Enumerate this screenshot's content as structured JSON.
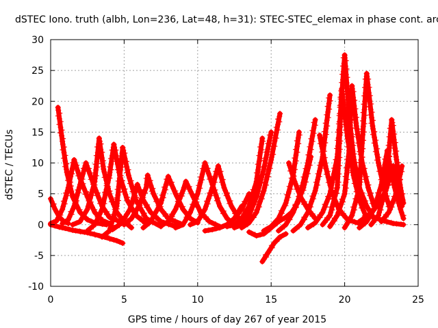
{
  "chart_data": {
    "type": "scatter",
    "title": "dSTEC Iono. truth (albh, Lon=236, Lat=48, h=31): STEC-STEC_elemax in phase cont. arc",
    "xlabel": "GPS time / hours of day 267 of year 2015",
    "ylabel": "dSTEC  / TECUs",
    "xlim": [
      0,
      25
    ],
    "ylim": [
      -10,
      30
    ],
    "xticks": [
      0,
      5,
      10,
      15,
      20,
      25
    ],
    "yticks": [
      -10,
      -5,
      0,
      5,
      10,
      15,
      20,
      25,
      30
    ],
    "grid": true,
    "marker": "+",
    "color": "#ff0000",
    "series": [
      {
        "x": [
          0.0,
          0.3,
          0.6,
          1.0,
          1.5,
          2.5,
          3.5,
          4.5,
          4.9
        ],
        "y": [
          0.0,
          -0.2,
          -0.4,
          -0.6,
          -0.9,
          -1.3,
          -1.9,
          -2.6,
          -3.0
        ]
      },
      {
        "x": [
          0.0,
          0.3,
          0.6,
          0.9,
          1.2
        ],
        "y": [
          4.2,
          2.5,
          1.2,
          0.5,
          0.2
        ]
      },
      {
        "x": [
          0.5,
          0.8,
          1.1,
          1.5,
          2.0,
          2.5,
          3.0,
          3.8
        ],
        "y": [
          19.0,
          13.5,
          8.5,
          4.5,
          2.0,
          0.8,
          0.3,
          0.0
        ]
      },
      {
        "x": [
          0.0,
          0.4,
          0.8,
          1.2,
          1.6
        ],
        "y": [
          0.2,
          0.6,
          2.5,
          6.0,
          10.5
        ]
      },
      {
        "x": [
          1.6,
          2.0,
          2.5,
          3.0,
          3.5,
          4.0
        ],
        "y": [
          10.5,
          7.5,
          4.5,
          2.0,
          0.7,
          0.2
        ]
      },
      {
        "x": [
          0.8,
          1.2,
          1.6,
          2.0,
          2.4
        ],
        "y": [
          0.2,
          0.8,
          3.0,
          6.5,
          10.0
        ]
      },
      {
        "x": [
          2.4,
          3.0,
          3.5,
          4.0,
          4.8
        ],
        "y": [
          10.0,
          6.0,
          3.0,
          1.2,
          0.4
        ]
      },
      {
        "x": [
          1.5,
          2.0,
          2.5,
          3.0,
          3.3
        ],
        "y": [
          0.0,
          0.5,
          2.5,
          7.0,
          14.0
        ]
      },
      {
        "x": [
          3.3,
          3.6,
          4.0,
          4.5,
          5.0,
          5.5
        ],
        "y": [
          14.0,
          9.0,
          5.0,
          2.0,
          0.5,
          -0.5
        ]
      },
      {
        "x": [
          2.5,
          3.0,
          3.5,
          4.0,
          4.3
        ],
        "y": [
          -1.0,
          0.0,
          2.5,
          8.0,
          13.0
        ]
      },
      {
        "x": [
          4.3,
          4.7,
          5.2,
          5.8,
          6.5
        ],
        "y": [
          13.0,
          8.0,
          4.0,
          1.5,
          0.2
        ]
      },
      {
        "x": [
          3.5,
          4.0,
          4.5,
          4.9
        ],
        "y": [
          -2.0,
          -1.0,
          3.0,
          12.5
        ]
      },
      {
        "x": [
          4.9,
          5.3,
          5.8,
          6.5,
          7.5
        ],
        "y": [
          12.5,
          8.0,
          4.0,
          1.0,
          -0.3
        ]
      },
      {
        "x": [
          4.2,
          4.8,
          5.4,
          5.9
        ],
        "y": [
          -0.8,
          0.2,
          2.5,
          6.5
        ]
      },
      {
        "x": [
          5.9,
          6.3,
          6.8,
          7.5,
          8.5
        ],
        "y": [
          6.5,
          4.0,
          2.0,
          0.5,
          -0.3
        ]
      },
      {
        "x": [
          5.0,
          5.5,
          6.0,
          6.5,
          6.6
        ],
        "y": [
          0.0,
          1.0,
          3.0,
          6.0,
          8.0
        ]
      },
      {
        "x": [
          6.6,
          7.0,
          7.5,
          8.0,
          9.0
        ],
        "y": [
          8.0,
          5.0,
          2.5,
          1.0,
          0.0
        ]
      },
      {
        "x": [
          6.3,
          6.8,
          7.5,
          8.0
        ],
        "y": [
          -0.5,
          0.5,
          3.5,
          7.8
        ]
      },
      {
        "x": [
          8.0,
          8.5,
          9.0,
          9.5,
          10.0
        ],
        "y": [
          7.8,
          5.0,
          2.5,
          1.0,
          0.3
        ]
      },
      {
        "x": [
          7.5,
          8.0,
          8.5,
          9.0,
          9.2
        ],
        "y": [
          -0.2,
          0.5,
          2.5,
          5.5,
          7.0
        ]
      },
      {
        "x": [
          9.2,
          9.7,
          10.2,
          10.8,
          11.5
        ],
        "y": [
          7.0,
          4.5,
          2.0,
          0.5,
          -0.3
        ]
      },
      {
        "x": [
          8.5,
          9.0,
          9.5,
          10.0,
          10.5
        ],
        "y": [
          -0.5,
          0.0,
          2.0,
          5.0,
          10.0
        ]
      },
      {
        "x": [
          10.5,
          11.0,
          11.5,
          12.0,
          12.5
        ],
        "y": [
          10.0,
          6.5,
          3.0,
          1.0,
          0.0
        ]
      },
      {
        "x": [
          9.5,
          10.0,
          10.5,
          11.0,
          11.4
        ],
        "y": [
          0.0,
          0.5,
          2.5,
          6.0,
          9.5
        ]
      },
      {
        "x": [
          11.4,
          11.8,
          12.3,
          12.8,
          13.3
        ],
        "y": [
          9.5,
          6.0,
          3.0,
          1.0,
          0.2
        ]
      },
      {
        "x": [
          10.5,
          11.0,
          11.5,
          12.0,
          12.5,
          13.0
        ],
        "y": [
          -1.0,
          -0.8,
          -0.5,
          0.0,
          1.0,
          3.0
        ]
      },
      {
        "x": [
          11.5,
          12.0,
          12.5,
          13.0,
          13.5
        ],
        "y": [
          -0.5,
          0.0,
          1.0,
          2.5,
          5.0
        ]
      },
      {
        "x": [
          12.0,
          12.5,
          13.0,
          13.5,
          14.0,
          14.4
        ],
        "y": [
          -0.3,
          0.0,
          1.0,
          3.0,
          7.0,
          14.0
        ]
      },
      {
        "x": [
          12.5,
          13.0,
          13.5,
          14.0,
          14.5,
          15.0
        ],
        "y": [
          -0.5,
          0.0,
          1.5,
          4.5,
          9.0,
          15.0
        ]
      },
      {
        "x": [
          13.0,
          13.5,
          14.0,
          14.5,
          15.0,
          15.6
        ],
        "y": [
          -0.5,
          0.3,
          2.0,
          5.5,
          10.5,
          18.0
        ]
      },
      {
        "x": [
          14.4,
          14.8,
          15.2,
          15.6,
          16.0
        ],
        "y": [
          -6.0,
          -4.5,
          -3.0,
          -2.0,
          -1.5
        ]
      },
      {
        "x": [
          13.5,
          14.0,
          14.5,
          15.0,
          15.5,
          16.0,
          16.4,
          16.8,
          17.2,
          17.7
        ],
        "y": [
          -1.2,
          -1.8,
          -1.5,
          -0.5,
          0.5,
          1.2,
          2.0,
          3.5,
          6.0,
          11.0
        ]
      },
      {
        "x": [
          14.5,
          15.0,
          15.5,
          16.0,
          16.5,
          16.9
        ],
        "y": [
          -1.0,
          -0.3,
          1.0,
          3.5,
          8.0,
          15.0
        ]
      },
      {
        "x": [
          15.5,
          16.0,
          16.5,
          17.0,
          17.5,
          18.0
        ],
        "y": [
          -1.0,
          0.0,
          2.0,
          5.0,
          10.0,
          17.0
        ]
      },
      {
        "x": [
          16.5,
          17.0,
          17.5,
          18.0,
          18.5,
          19.0
        ],
        "y": [
          -1.0,
          0.0,
          2.0,
          5.5,
          11.0,
          21.0
        ]
      },
      {
        "x": [
          16.2,
          16.6,
          17.0,
          17.5,
          18.0
        ],
        "y": [
          10.0,
          7.0,
          4.5,
          2.5,
          1.0
        ]
      },
      {
        "x": [
          18.3,
          18.7,
          19.1,
          19.6,
          20.2,
          21.0
        ],
        "y": [
          14.5,
          9.5,
          5.5,
          2.5,
          0.8,
          0.2
        ]
      },
      {
        "x": [
          17.5,
          18.0,
          18.5,
          19.0,
          19.5,
          20.0
        ],
        "y": [
          -0.5,
          0.3,
          2.0,
          5.0,
          11.0,
          27.5
        ]
      },
      {
        "x": [
          20.0,
          20.3,
          20.6,
          21.0,
          21.5,
          22.0
        ],
        "y": [
          27.5,
          18.0,
          11.0,
          6.0,
          3.0,
          1.0
        ]
      },
      {
        "x": [
          18.5,
          19.0,
          19.5,
          19.8
        ],
        "y": [
          0.0,
          1.5,
          6.0,
          22.0
        ]
      },
      {
        "x": [
          19.8,
          20.2,
          20.6,
          21.0,
          21.5
        ],
        "y": [
          22.0,
          14.0,
          8.0,
          4.0,
          1.0
        ]
      },
      {
        "x": [
          19.0,
          19.5,
          20.0,
          20.3,
          20.5
        ],
        "y": [
          -0.3,
          1.5,
          5.0,
          12.0,
          22.5
        ]
      },
      {
        "x": [
          20.5,
          20.8,
          21.2,
          21.6,
          22.0
        ],
        "y": [
          22.5,
          16.0,
          10.0,
          6.0,
          3.0
        ]
      },
      {
        "x": [
          20.0,
          20.5,
          21.0,
          21.5
        ],
        "y": [
          -0.5,
          1.5,
          6.0,
          24.5
        ]
      },
      {
        "x": [
          21.5,
          21.9,
          22.3,
          22.7,
          23.1
        ],
        "y": [
          24.5,
          16.0,
          10.0,
          5.5,
          2.5
        ]
      },
      {
        "x": [
          21.0,
          21.5,
          22.0,
          22.5,
          22.9
        ],
        "y": [
          -0.5,
          0.5,
          2.5,
          6.5,
          12.0
        ]
      },
      {
        "x": [
          22.9,
          23.2,
          23.5,
          23.8,
          24.0
        ],
        "y": [
          12.0,
          8.0,
          5.0,
          2.5,
          1.0
        ]
      },
      {
        "x": [
          21.8,
          22.3,
          22.8,
          23.2
        ],
        "y": [
          0.0,
          1.5,
          6.0,
          17.0
        ]
      },
      {
        "x": [
          23.2,
          23.5,
          23.8,
          24.0
        ],
        "y": [
          17.0,
          11.0,
          6.0,
          3.5
        ]
      },
      {
        "x": [
          21.0,
          21.6,
          22.2,
          22.8,
          23.3
        ],
        "y": [
          0.5,
          1.5,
          3.0,
          5.5,
          9.5
        ]
      },
      {
        "x": [
          23.3,
          23.6,
          23.9
        ],
        "y": [
          9.5,
          6.0,
          3.0
        ]
      },
      {
        "x": [
          22.5,
          23.0,
          23.5,
          23.9
        ],
        "y": [
          0.5,
          2.0,
          5.0,
          9.5
        ]
      },
      {
        "x": [
          22.0,
          22.7,
          23.3,
          24.0
        ],
        "y": [
          1.2,
          0.6,
          0.2,
          0.0
        ]
      }
    ]
  }
}
